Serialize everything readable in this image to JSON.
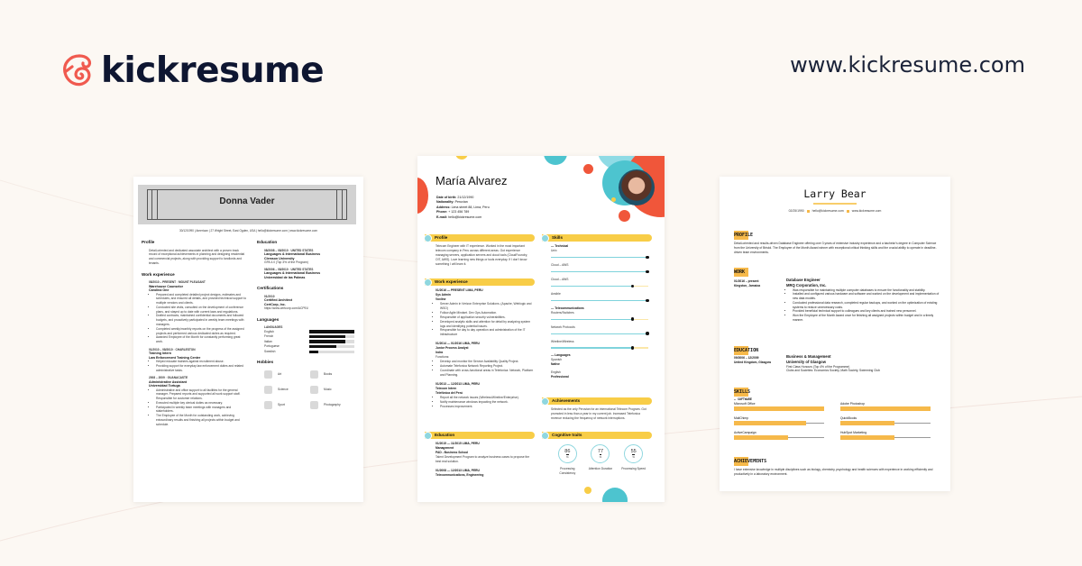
{
  "brand": {
    "name": "kickresume",
    "url": "www.kickresume.com",
    "color": "#f05a4f"
  },
  "donna": {
    "name": "Donna Vader",
    "contact": "30/12/1990  |  American  |  27 Wright Street, East Ogden, USA  |  hello@kickresume.com  |  www.kickresume.com",
    "profile": {
      "heading": "Profile",
      "text": "Detail-oriented and dedicated associate architect with a proven track record of exceptional achievements in planning and designing residential and commercial projects, along with providing support to landlords and tenants."
    },
    "work": {
      "heading": "Work experience",
      "jobs": [
        {
          "meta": "08/2010 – PRESENT  ◦  MOUNT PLEASANT",
          "title": "Warehouse Counselor",
          "company": "Carolina One",
          "bullets": [
            "Prepared and completed detailed project designs, estimates and schedules, and ensured all details, and provided technical support to multiple vendors and clients.",
            "Conducted site visits, consulted on the development of conference plans, and stayed up to date with current laws and regulations.",
            "Drafted contracts, maintained confidential documents and followed budgets, and proactively participated in weekly team meetings with managers.",
            "Completed weekly/monthly reports on the progress of the assigned projects and performed various dedicated duties as required.",
            "Awarded Employee of the Month for constantly performing great work."
          ]
        },
        {
          "meta": "01/2010 – 08/2010  ◦  CHARLESTON",
          "title": "Training Intern",
          "company": "Law Enforcement Training Center",
          "bullets": [
            "Helped educate trainees against recruitment abuse.",
            "Providing support for everyday law enforcement duties and related administrative tasks."
          ]
        },
        {
          "meta": "2008 – 2009  ◦  GUANACASTE",
          "title": "Administrative Assistant",
          "company": "Universidad Tortuga",
          "bullets": [
            "Administrative and office support to all facilities for the general manager. Prepared reports and supported all work support staff. Responsible for customer relations.",
            "Executed multiple key clerical duties as necessary.",
            "Participated in weekly team meetings with managers and stakeholders.",
            "The Employee of the Month for outstanding work, achieving extraordinary results and finishing all projects within budget and schedule."
          ]
        }
      ]
    },
    "education": {
      "heading": "Education",
      "items": [
        {
          "meta": "08/2008 – 08/2010  ◦  UNITED STATES",
          "title": "Languages & International Business",
          "school": "Clemson University",
          "note": "GPA 4.0 (Top 3% of the Program)"
        },
        {
          "meta": "08/2006 – 08/2010  ◦  UNITED STATES",
          "title": "Languages & International Business",
          "school": "Universidad de las Palmas",
          "note": ""
        }
      ]
    },
    "certifications": {
      "heading": "Certifications",
      "date": "01/2010",
      "title": "Certified Architect",
      "org": "CertCorp, Inc.",
      "link": "https://www.certcorp.com/ACP91/"
    },
    "languages": {
      "heading": "Languages",
      "sub": "LANGUAGES",
      "items": [
        {
          "name": "English",
          "level": 1.0
        },
        {
          "name": "French",
          "level": 0.8
        },
        {
          "name": "Italian",
          "level": 0.8
        },
        {
          "name": "Portuguese",
          "level": 0.6
        },
        {
          "name": "Swedish",
          "level": 0.2
        }
      ]
    },
    "hobbies": {
      "heading": "Hobbies",
      "items": [
        "Art",
        "Books",
        "Science",
        "Music",
        "Sport",
        "Photography"
      ]
    }
  },
  "maria": {
    "name": "María Alvarez",
    "details": [
      {
        "label": "Date of birth:",
        "value": "21/12/1990"
      },
      {
        "label": "Nationality:",
        "value": "Peruvian"
      },
      {
        "label": "Address:",
        "value": "Lima street 88, Lima, Peru"
      },
      {
        "label": "Phone:",
        "value": "+ 123 456 789"
      },
      {
        "label": "E-mail:",
        "value": "hello@kickresume.com"
      }
    ],
    "profile": {
      "heading": "Profile",
      "text": "Telecom Engineer with IT experience. Worked in the most important telecom company in Peru across different areas. Got experience managing servers, application servers and cloud tools (CloudFoundry, OIT, AWS). Love learning new things or tools everyday. If I don't know something I will learn it."
    },
    "work": {
      "heading": "Work experience",
      "jobs": [
        {
          "meta": "01/2016 — PRESENT        LIMA, PERU",
          "title": "Sys Admin",
          "company": "Voxline",
          "bullets": [
            "Server Admin in Verizon Enterprise Solutions. (Apache, Weblogic and WSO)",
            "Follow Agile Mindset. Dev Ops Automation.",
            "Responsible of application security vulnerabilities.",
            "Developed analytic skills and attention for detail by analyzing system logs and identifying potential issues.",
            "Responsible for day to day operation and administration of the IT infrastructure"
          ]
        },
        {
          "meta": "01/2014 — 01/2016        LIMA, PERU",
          "title": "Junior Process Analyst",
          "company": "Indra",
          "sub": "Functions:",
          "bullets": [
            "Develop and monitor the Service Availability Quality Project.",
            "Automate Telefonica Network Reporting Project.",
            "Coordinate with cross-functional areas in Telefonica: Network, Platform and Planning."
          ]
        },
        {
          "meta": "01/2013 — 12/2013        LIMA, PERU",
          "title": "Telecom Intern",
          "company": "Telefónica del Perú",
          "bullets": [
            "Report all the network issues (Wireless/Wireline/Enterprise).",
            "Notify maintenance windows impacting the network.",
            "Processes improvement."
          ]
        }
      ]
    },
    "education": {
      "heading": "Education",
      "items": [
        {
          "meta": "01/2015 — 11/2015        LIMA, PERU",
          "title": "Management",
          "school": "PAD - Business School",
          "note": "Talent Development Program to analyze business cases to propose the best real solution."
        },
        {
          "meta": "01/2008 — 12/2013        LIMA, PERU",
          "title": "Telecommunications, Engineering",
          "school": "",
          "note": ""
        }
      ]
    },
    "skills": {
      "heading": "Skills",
      "groups": [
        {
          "name": "— Technical",
          "items": [
            {
              "name": "Unix",
              "level": 1.0
            },
            {
              "name": "Cloud – AWS",
              "level": 1.0
            },
            {
              "name": "Cloud – AWS",
              "level": 0.85
            },
            {
              "name": "Ansible",
              "level": 1.0
            }
          ]
        },
        {
          "name": "— Telecommunications",
          "items": [
            {
              "name": "Routers/Switches",
              "level": 0.85
            },
            {
              "name": "Network Protocols",
              "level": 1.0
            },
            {
              "name": "Wireline/Wireless",
              "level": 0.85
            }
          ]
        }
      ],
      "languages": {
        "name": "— Languages",
        "items": [
          {
            "name": "Spanish",
            "level": "Native"
          },
          {
            "name": "English",
            "level": "Professional"
          }
        ]
      }
    },
    "achievements": {
      "heading": "Achievements",
      "text": "Selected as the only Peruvian for an international Telecom Program. Got promoted in less than a year in my current job. Increased Telefonica revenue reducing the frequency of network interruptions."
    },
    "cognitive": {
      "heading": "Cognitive traits",
      "unit": "%",
      "items": [
        {
          "value": "86",
          "label": "Processing Consistency"
        },
        {
          "value": "77",
          "label": "Attention Duration"
        },
        {
          "value": "55",
          "label": "Processing Speed"
        }
      ]
    },
    "colors": {
      "yellow": "#f8cd47",
      "teal": "#4dc4cf",
      "red": "#f0563a"
    }
  },
  "larry": {
    "name": "Larry Bear",
    "contact": [
      "02/25/1990",
      "hello@kickresume.com",
      "www.kickresume.com"
    ],
    "profile": {
      "heading": "PROFILE",
      "text": "Detail-oriented and results-driven Database Engineer offering over 3 years of extensive industry experience and a bachelor's degree in Computer Science from the University of Bristol. The Employee of the Month Award winner with exceptional critical thinking skills and the crucial ability to operate in deadline-driven team environments."
    },
    "work": {
      "heading": "WORK",
      "date": "01/2016 – present",
      "place": "Kingston, Jamaica",
      "title": "Database Engineer",
      "company": "MRQ Corporation, Inc.",
      "bullets": [
        "Was responsible for maintaining multiple computer databases to ensure the functionality and stability.",
        "Installed and configured various hardware and software and worked on the development and implementation of new data models.",
        "Conducted professional data research, completed regular backups, and worked on the optimization of existing systems to reduce unnecessary costs.",
        "Provided beneficial technical support to colleagues and key clients and trained new personnel.",
        "Won the Employee of the Month Award once for finishing all assigned projects within budget and in a timely manner."
      ]
    },
    "education": {
      "heading": "EDUCATION",
      "date": "09/2006 – 12/2009",
      "place": "United Kingdom, Glasgow",
      "title": "Business & Management",
      "school": "University of Glasgow",
      "lines": [
        "First Class Honours (Top 4% of the Programme)",
        "Clubs and Societies: Economics Society, Math Society, Swimming Club"
      ]
    },
    "skills": {
      "heading": "SKILLS",
      "group": "– SOFTWARE",
      "items": [
        {
          "name": "Microsoft Office",
          "level": 1.0
        },
        {
          "name": "Adobe Photoshop",
          "level": 1.0
        },
        {
          "name": "MailChimp",
          "level": 0.8
        },
        {
          "name": "QuickBooks",
          "level": 0.6
        },
        {
          "name": "ActiveCampaign",
          "level": 0.6
        },
        {
          "name": "HubSpot Marketing",
          "level": 0.6
        }
      ]
    },
    "achievements": {
      "heading": "ACHIEVEMENTS",
      "text": "I have extensive knowledge in multiple disciplines such as biology, chemistry, psychology and health sciences with experience in working efficiently and productively in a laboratory environment."
    },
    "accent": "#f6b94a"
  }
}
